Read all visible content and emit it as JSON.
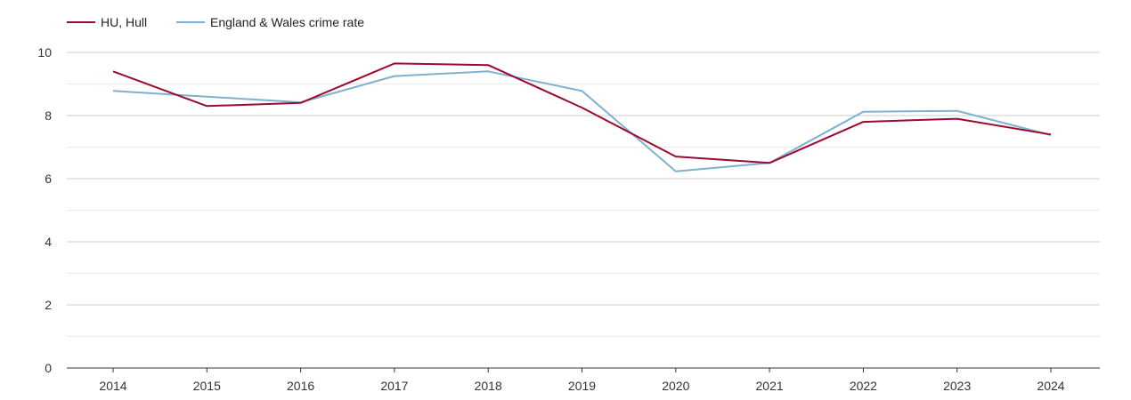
{
  "chart_data": {
    "type": "line",
    "title": "",
    "xlabel": "",
    "ylabel": "",
    "x": [
      "2014",
      "2015",
      "2016",
      "2017",
      "2018",
      "2019",
      "2020",
      "2021",
      "2022",
      "2023",
      "2024"
    ],
    "ylim": [
      0,
      10
    ],
    "yticks": [
      "0",
      "2",
      "4",
      "6",
      "8",
      "10"
    ],
    "grid": true,
    "legend_position": "top-left",
    "series": [
      {
        "name": "HU, Hull",
        "color": "#9b0a32",
        "values": [
          9.4,
          8.3,
          8.4,
          9.65,
          9.6,
          8.25,
          6.7,
          6.5,
          7.8,
          7.9,
          7.4
        ]
      },
      {
        "name": "England & Wales crime rate",
        "color": "#7fb0d0",
        "values": [
          8.78,
          8.6,
          8.42,
          9.25,
          9.4,
          8.78,
          6.23,
          6.5,
          8.12,
          8.15,
          7.38
        ]
      }
    ]
  }
}
